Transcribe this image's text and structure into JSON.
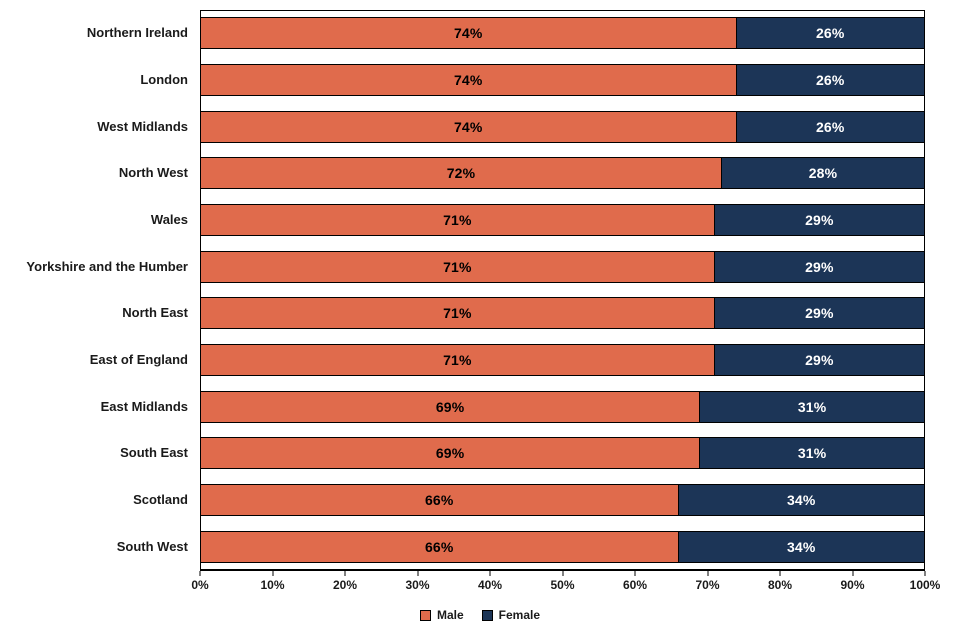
{
  "chart_data": {
    "type": "bar",
    "orientation": "horizontal",
    "stacked": true,
    "title": "",
    "xlabel": "",
    "ylabel": "",
    "xlim": [
      0,
      100
    ],
    "grid": false,
    "legend_position": "bottom",
    "categories": [
      "Northern Ireland",
      "London",
      "West Midlands",
      "North West",
      "Wales",
      "Yorkshire and the Humber",
      "North East",
      "East of England",
      "East Midlands",
      "South East",
      "Scotland",
      "South West"
    ],
    "series": [
      {
        "name": "Male",
        "color": "#E06B4C",
        "label_color": "#000000",
        "values": [
          74,
          74,
          74,
          72,
          71,
          71,
          71,
          71,
          69,
          69,
          66,
          66
        ]
      },
      {
        "name": "Female",
        "color": "#1C3557",
        "label_color": "#FFFFFF",
        "values": [
          26,
          26,
          26,
          28,
          29,
          29,
          29,
          29,
          31,
          31,
          34,
          34
        ]
      }
    ],
    "value_suffix": "%",
    "x_ticks": [
      "0%",
      "10%",
      "20%",
      "30%",
      "40%",
      "50%",
      "60%",
      "70%",
      "80%",
      "90%",
      "100%"
    ]
  }
}
